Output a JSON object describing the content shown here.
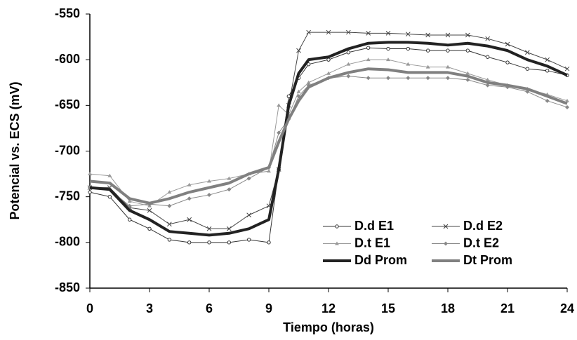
{
  "chart_data": {
    "type": "line",
    "x_label": "Tiempo (horas)",
    "y_label": "Potencial vs. ECS (mV)",
    "x": [
      0,
      1,
      2,
      3,
      4,
      5,
      6,
      7,
      8,
      9,
      9.5,
      10,
      10.5,
      11,
      12,
      13,
      14,
      15,
      16,
      17,
      18,
      19,
      20,
      21,
      22,
      23,
      24
    ],
    "xlim": [
      0,
      24
    ],
    "xticks": [
      0,
      3,
      6,
      9,
      12,
      15,
      18,
      21,
      24
    ],
    "ylim": [
      -850,
      -550
    ],
    "yticks": [
      -850,
      -800,
      -750,
      -700,
      -650,
      -600,
      -550
    ],
    "grid": false,
    "legend": "lower right",
    "series": [
      {
        "name": "D.d E1",
        "color": "#333333",
        "width": 1,
        "marker": "circle",
        "values": [
          -745,
          -750,
          -775,
          -785,
          -797,
          -800,
          -800,
          -800,
          -797,
          -800,
          -720,
          -640,
          -620,
          -605,
          -600,
          -592,
          -587,
          -588,
          -588,
          -590,
          -590,
          -590,
          -597,
          -603,
          -610,
          -612,
          -617
        ]
      },
      {
        "name": "D.d E2",
        "color": "#444444",
        "width": 1,
        "marker": "x",
        "values": [
          -740,
          -740,
          -762,
          -765,
          -780,
          -775,
          -785,
          -785,
          -770,
          -760,
          -720,
          -650,
          -590,
          -570,
          -570,
          -570,
          -571,
          -571,
          -572,
          -573,
          -573,
          -573,
          -577,
          -583,
          -592,
          -600,
          -610
        ]
      },
      {
        "name": "D.t E1",
        "color": "#999999",
        "width": 1,
        "marker": "triangle",
        "values": [
          -725,
          -727,
          -755,
          -760,
          -745,
          -737,
          -733,
          -730,
          -725,
          -722,
          -650,
          -660,
          -635,
          -625,
          -615,
          -605,
          -600,
          -600,
          -605,
          -608,
          -608,
          -615,
          -622,
          -628,
          -632,
          -638,
          -645
        ]
      },
      {
        "name": "D.t E2",
        "color": "#888888",
        "width": 1,
        "marker": "diamond",
        "values": [
          -740,
          -742,
          -760,
          -758,
          -760,
          -752,
          -748,
          -742,
          -730,
          -718,
          -680,
          -665,
          -640,
          -628,
          -620,
          -618,
          -620,
          -620,
          -620,
          -620,
          -620,
          -622,
          -628,
          -630,
          -635,
          -645,
          -652
        ]
      },
      {
        "name": "Dd Prom",
        "color": "#222222",
        "width": 4,
        "marker": null,
        "values": [
          -740,
          -742,
          -765,
          -775,
          -788,
          -790,
          -792,
          -790,
          -785,
          -775,
          -720,
          -650,
          -615,
          -600,
          -597,
          -588,
          -582,
          -581,
          -581,
          -582,
          -584,
          -582,
          -585,
          -590,
          -600,
          -607,
          -617
        ]
      },
      {
        "name": "Dt Prom",
        "color": "#808080",
        "width": 4,
        "marker": null,
        "values": [
          -733,
          -735,
          -752,
          -757,
          -752,
          -745,
          -740,
          -735,
          -725,
          -718,
          -690,
          -665,
          -645,
          -630,
          -620,
          -614,
          -610,
          -611,
          -614,
          -614,
          -614,
          -618,
          -625,
          -628,
          -632,
          -640,
          -648
        ]
      }
    ]
  }
}
